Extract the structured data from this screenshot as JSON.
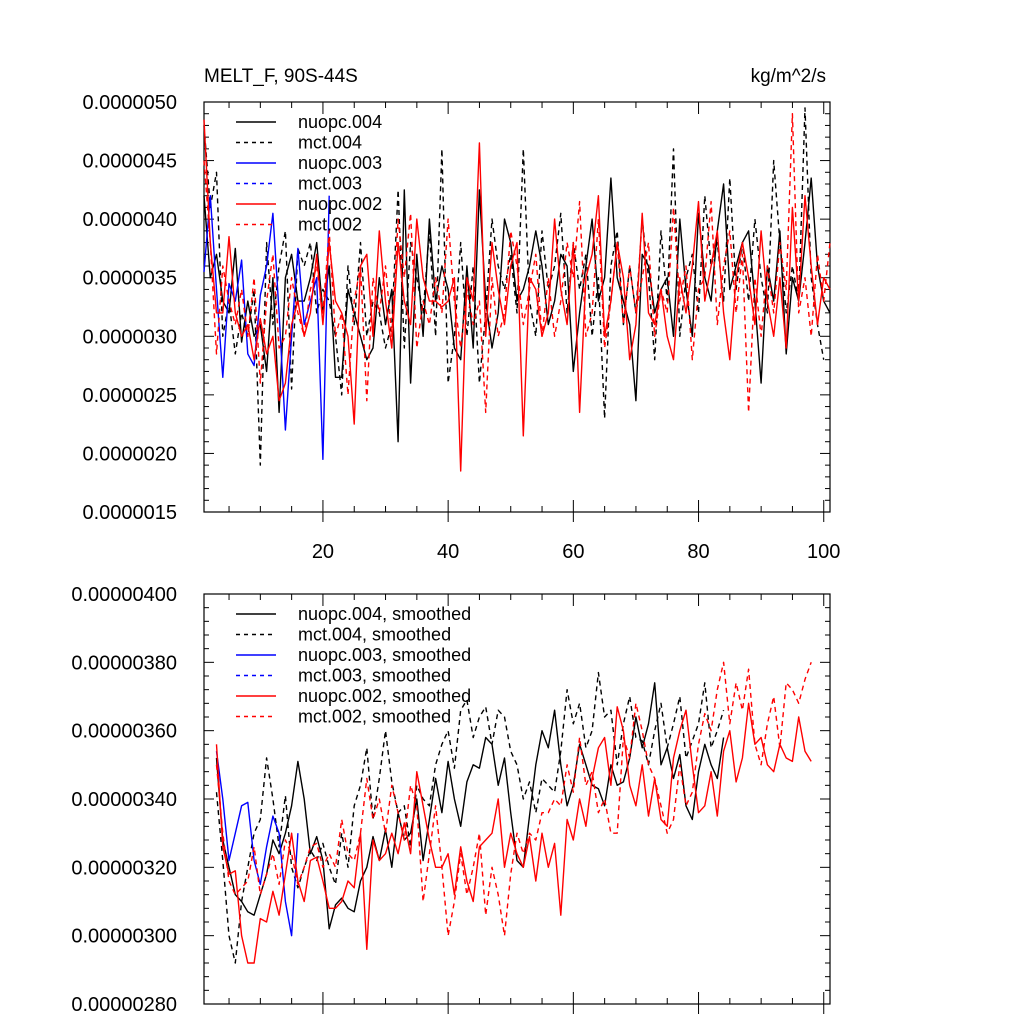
{
  "chart_data": [
    {
      "type": "line",
      "title": "MELT_F, 90S-44S",
      "units": "kg/m^2/s",
      "xlim": [
        1,
        101
      ],
      "ylim": [
        1.5e-06,
        5e-06
      ],
      "x_ticks": [
        20,
        40,
        60,
        80,
        100
      ],
      "x_tick_labels": [
        "20",
        "40",
        "60",
        "80",
        "100"
      ],
      "y_ticks": [
        1.5e-06,
        2e-06,
        2.5e-06,
        3e-06,
        3.5e-06,
        4e-06,
        4.5e-06,
        5e-06
      ],
      "y_tick_labels": [
        "0.0000015",
        "0.0000020",
        "0.0000025",
        "0.0000030",
        "0.0000035",
        "0.0000040",
        "0.0000045",
        "0.0000050"
      ],
      "legend_position": "top-left",
      "series": [
        {
          "name": "nuopc.004",
          "color": "#000000",
          "dashed": false,
          "x_start": 1,
          "values": [
            4.2,
            3.5,
            3.7,
            3.3,
            3.2,
            3.75,
            2.95,
            3.3,
            3.0,
            3.1,
            2.7,
            3.5,
            2.35,
            3.5,
            3.7,
            3.3,
            3.3,
            3.5,
            3.8,
            3.2,
            3.6,
            2.65,
            2.65,
            3.4,
            3.2,
            3.0,
            2.8,
            2.9,
            3.5,
            3.1,
            3.4,
            2.1,
            4.25,
            2.6,
            3.7,
            3.0,
            4.0,
            3.3,
            3.6,
            3.4,
            2.9,
            2.8,
            3.6,
            2.9,
            4.25,
            3.3,
            2.9,
            3.2,
            4.0,
            3.8,
            3.3,
            3.4,
            3.6,
            3.9,
            3.6,
            3.1,
            3.3,
            3.7,
            3.6,
            2.7,
            3.2,
            3.6,
            4.0,
            3.3,
            3.5,
            4.35,
            3.5,
            3.3,
            3.1,
            2.45,
            3.7,
            3.6,
            3.2,
            3.4,
            3.5,
            3.0,
            4.0,
            3.4,
            3.0,
            4.05,
            3.5,
            3.3,
            3.9,
            4.3,
            3.4,
            3.6,
            3.8,
            3.9,
            3.3,
            2.6,
            3.6,
            3.3,
            3.9,
            2.85,
            3.5,
            3.3,
            3.8,
            4.35,
            3.6,
            3.3,
            3.2
          ]
        },
        {
          "name": "mct.004",
          "color": "#000000",
          "dashed": true,
          "x_start": 1,
          "values": [
            4.8,
            4.1,
            4.4,
            3.0,
            3.3,
            2.85,
            3.2,
            3.0,
            3.4,
            1.9,
            3.8,
            3.1,
            3.6,
            3.9,
            2.55,
            3.75,
            3.6,
            3.8,
            3.2,
            3.4,
            3.3,
            3.0,
            2.5,
            3.6,
            3.1,
            3.8,
            3.0,
            3.3,
            3.2,
            2.9,
            3.1,
            4.25,
            2.9,
            3.8,
            3.5,
            3.2,
            3.9,
            3.0,
            4.6,
            2.6,
            3.0,
            3.8,
            3.0,
            3.6,
            2.6,
            3.2,
            4.0,
            3.6,
            3.4,
            3.7,
            3.2,
            4.6,
            3.3,
            3.0,
            3.9,
            3.4,
            3.6,
            4.05,
            3.2,
            3.8,
            3.4,
            3.7,
            3.0,
            3.5,
            2.3,
            3.6,
            3.9,
            3.1,
            3.6,
            3.2,
            4.0,
            3.5,
            2.8,
            3.9,
            3.3,
            4.6,
            3.0,
            3.5,
            3.7,
            3.2,
            4.2,
            3.6,
            3.8,
            3.3,
            4.35,
            3.4,
            3.8,
            3.3,
            4.0,
            3.5,
            3.2,
            4.5,
            3.8,
            3.2,
            3.6,
            3.3,
            4.95,
            3.5,
            3.1,
            2.8
          ]
        },
        {
          "name": "nuopc.003",
          "color": "#0000ff",
          "dashed": false,
          "x_start": 1,
          "values": [
            3.55,
            4.2,
            3.4,
            2.65,
            3.45,
            3.3,
            3.65,
            2.85,
            2.75,
            3.35,
            3.6,
            4.05,
            3.2,
            2.2,
            3.0,
            3.75,
            3.1,
            3.3,
            3.5,
            1.95,
            4.2
          ]
        },
        {
          "name": "mct.003",
          "color": "#0000ff",
          "dashed": true,
          "x_start": 1,
          "values": []
        },
        {
          "name": "nuopc.002",
          "color": "#ff0000",
          "dashed": false,
          "x_start": 1,
          "values": [
            4.85,
            3.8,
            3.2,
            3.2,
            3.85,
            3.2,
            3.0,
            3.1,
            2.8,
            3.15,
            2.85,
            3.0,
            2.45,
            2.6,
            3.1,
            3.3,
            3.0,
            3.2,
            3.7,
            3.1,
            3.8,
            3.3,
            3.2,
            3.0,
            2.25,
            3.6,
            3.7,
            3.0,
            3.9,
            3.3,
            2.9,
            3.8,
            3.3,
            3.1,
            4.0,
            3.5,
            3.3,
            3.3,
            3.25,
            3.3,
            3.5,
            1.85,
            3.5,
            3.3,
            4.65,
            3.0,
            3.8,
            3.4,
            3.1,
            3.6,
            3.8,
            2.15,
            3.5,
            3.4,
            3.0,
            3.2,
            4.0,
            3.4,
            3.1,
            3.8,
            2.35,
            3.5,
            3.7,
            4.2,
            3.0,
            3.3,
            3.8,
            3.5,
            2.8,
            3.1,
            4.05,
            3.2,
            3.1,
            3.4,
            3.0,
            2.8,
            3.5,
            3.2,
            3.6,
            4.15,
            3.3,
            3.6,
            3.9,
            3.2,
            2.8,
            3.5,
            3.8,
            3.5,
            3.1,
            3.9,
            3.3,
            3.0,
            3.5,
            2.9,
            4.1,
            3.3,
            4.2,
            3.6,
            3.1,
            3.5,
            3.4
          ]
        },
        {
          "name": "mct.002",
          "color": "#ff0000",
          "dashed": true,
          "x_start": 1,
          "values": [
            4.5,
            3.8,
            2.85,
            3.6,
            3.3,
            3.1,
            3.4,
            3.0,
            3.5,
            2.6,
            3.3,
            3.7,
            2.9,
            3.0,
            3.5,
            3.2,
            3.0,
            3.4,
            3.6,
            3.2,
            3.9,
            3.0,
            3.2,
            2.5,
            3.3,
            3.6,
            2.45,
            3.5,
            3.2,
            3.6,
            3.0,
            4.0,
            3.5,
            4.05,
            2.9,
            3.3,
            3.1,
            3.5,
            3.2,
            4.0,
            3.3,
            2.9,
            3.4,
            3.1,
            3.3,
            2.35,
            3.5,
            3.0,
            3.2,
            3.9,
            3.6,
            3.1,
            3.4,
            3.7,
            3.0,
            3.5,
            3.0,
            3.3,
            3.8,
            3.5,
            4.15,
            3.0,
            3.2,
            4.0,
            2.9,
            3.3,
            3.8,
            3.1,
            3.6,
            3.2,
            3.5,
            3.8,
            3.0,
            3.4,
            3.2,
            4.1,
            3.3,
            3.6,
            2.8,
            3.4,
            3.5,
            4.15,
            3.1,
            3.6,
            3.9,
            3.2,
            3.7,
            2.35,
            3.5,
            3.0,
            3.6,
            3.2,
            3.8,
            3.4,
            4.9,
            3.2,
            3.5,
            3.0,
            3.7,
            3.3,
            3.8
          ]
        }
      ]
    },
    {
      "type": "line",
      "title": "",
      "xlim": [
        1,
        101
      ],
      "ylim": [
        2.8e-06,
        4e-06
      ],
      "x_ticks": [
        20,
        40,
        60,
        80,
        100
      ],
      "y_ticks": [
        2.8e-06,
        3e-06,
        3.2e-06,
        3.4e-06,
        3.6e-06,
        3.8e-06,
        4e-06
      ],
      "y_tick_labels": [
        "0.00000280",
        "0.00000300",
        "0.00000320",
        "0.00000340",
        "0.00000360",
        "0.00000380",
        "0.00000400"
      ],
      "legend_position": "top-left",
      "series": [
        {
          "name": "nuopc.004, smoothed",
          "color": "#000000",
          "dashed": false,
          "x_start": 3,
          "values": [
            3.52,
            3.28,
            3.2,
            3.12,
            3.1,
            3.07,
            3.06,
            3.12,
            3.18,
            3.28,
            3.24,
            3.3,
            3.38,
            3.51,
            3.4,
            3.24,
            3.29,
            3.22,
            3.02,
            3.09,
            3.11,
            3.08,
            3.07,
            3.16,
            3.2,
            3.29,
            3.22,
            3.31,
            3.2,
            3.36,
            3.28,
            3.3,
            3.4,
            3.22,
            3.34,
            3.46,
            3.36,
            3.51,
            3.4,
            3.32,
            3.45,
            3.5,
            3.49,
            3.58,
            3.56,
            3.44,
            3.52,
            3.36,
            3.22,
            3.2,
            3.35,
            3.5,
            3.6,
            3.55,
            3.66,
            3.5,
            3.38,
            3.44,
            3.56,
            3.5,
            3.44,
            3.43,
            3.38,
            3.5,
            3.44,
            3.45,
            3.52,
            3.64,
            3.55,
            3.62,
            3.74,
            3.5,
            3.55,
            3.46,
            3.53,
            3.38,
            3.34,
            3.48,
            3.56,
            3.5,
            3.46,
            3.58
          ]
        },
        {
          "name": "mct.004, smoothed",
          "color": "#000000",
          "dashed": true,
          "x_start": 3,
          "values": [
            3.42,
            3.22,
            3.0,
            2.92,
            3.1,
            3.2,
            3.3,
            3.34,
            3.52,
            3.4,
            3.26,
            3.41,
            3.2,
            3.14,
            3.2,
            3.25,
            3.22,
            3.27,
            3.2,
            3.15,
            3.3,
            3.2,
            3.38,
            3.44,
            3.55,
            3.34,
            3.46,
            3.6,
            3.45,
            3.36,
            3.38,
            3.26,
            3.44,
            3.4,
            3.38,
            3.5,
            3.56,
            3.6,
            3.49,
            3.66,
            3.69,
            3.58,
            3.64,
            3.67,
            3.56,
            3.66,
            3.64,
            3.54,
            3.5,
            3.4,
            3.45,
            3.36,
            3.46,
            3.44,
            3.42,
            3.54,
            3.72,
            3.62,
            3.68,
            3.55,
            3.6,
            3.77,
            3.64,
            3.66,
            3.5,
            3.62,
            3.7,
            3.58,
            3.57,
            3.5,
            3.6,
            3.68,
            3.55,
            3.62,
            3.7,
            3.52,
            3.57,
            3.62,
            3.74,
            3.55,
            3.6,
            3.66
          ]
        },
        {
          "name": "nuopc.003, smoothed",
          "color": "#0000ff",
          "dashed": false,
          "x_start": 3,
          "values": [
            3.54,
            3.4,
            3.22,
            3.3,
            3.38,
            3.39,
            3.22,
            3.15,
            3.26,
            3.35,
            3.3,
            3.1,
            3.0,
            3.3
          ]
        },
        {
          "name": "mct.003, smoothed",
          "color": "#0000ff",
          "dashed": true,
          "x_start": 3,
          "values": []
        },
        {
          "name": "nuopc.002, smoothed",
          "color": "#ff0000",
          "dashed": false,
          "x_start": 3,
          "values": [
            3.56,
            3.26,
            3.18,
            3.19,
            3.0,
            2.92,
            2.92,
            3.05,
            3.04,
            3.13,
            3.06,
            3.18,
            3.3,
            3.16,
            3.1,
            3.22,
            3.23,
            3.16,
            3.08,
            3.08,
            3.1,
            3.16,
            3.14,
            3.3,
            2.96,
            3.28,
            3.22,
            3.24,
            3.3,
            3.24,
            3.33,
            3.24,
            3.48,
            3.38,
            3.28,
            3.2,
            3.2,
            3.24,
            3.12,
            3.26,
            3.16,
            3.1,
            3.26,
            3.28,
            3.3,
            3.4,
            3.2,
            3.3,
            3.24,
            3.2,
            3.29,
            3.16,
            3.3,
            3.2,
            3.27,
            3.06,
            3.34,
            3.28,
            3.4,
            3.32,
            3.46,
            3.55,
            3.58,
            3.44,
            3.67,
            3.6,
            3.44,
            3.38,
            3.5,
            3.35,
            3.46,
            3.34,
            3.32,
            3.52,
            3.6,
            3.66,
            3.5,
            3.36,
            3.38,
            3.48,
            3.35,
            3.54,
            3.6,
            3.45,
            3.52,
            3.68,
            3.56,
            3.58,
            3.5,
            3.48,
            3.56,
            3.52,
            3.51,
            3.64,
            3.54,
            3.51
          ]
        },
        {
          "name": "mct.002, smoothed",
          "color": "#ff0000",
          "dashed": true,
          "x_start": 3,
          "values": [
            3.5,
            3.3,
            3.16,
            3.12,
            3.14,
            3.16,
            3.26,
            3.12,
            3.18,
            3.24,
            3.15,
            3.28,
            3.24,
            3.15,
            3.2,
            3.26,
            3.27,
            3.2,
            3.24,
            3.2,
            3.34,
            3.24,
            3.22,
            3.3,
            3.46,
            3.34,
            3.4,
            3.3,
            3.44,
            3.36,
            3.28,
            3.44,
            3.38,
            3.1,
            3.24,
            3.38,
            3.2,
            3.0,
            3.1,
            3.24,
            3.12,
            3.2,
            3.3,
            3.06,
            3.2,
            3.12,
            3.0,
            3.18,
            3.3,
            3.24,
            3.3,
            3.28,
            3.36,
            3.36,
            3.4,
            3.38,
            3.5,
            3.42,
            3.58,
            3.44,
            3.48,
            3.36,
            3.4,
            3.3,
            3.3,
            3.58,
            3.52,
            3.68,
            3.6,
            3.5,
            3.46,
            3.38,
            3.3,
            3.34,
            3.5,
            3.38,
            3.42,
            3.56,
            3.65,
            3.6,
            3.72,
            3.8,
            3.62,
            3.74,
            3.66,
            3.78,
            3.56,
            3.5,
            3.62,
            3.7,
            3.55,
            3.74,
            3.72,
            3.68,
            3.75,
            3.8
          ]
        }
      ]
    }
  ]
}
